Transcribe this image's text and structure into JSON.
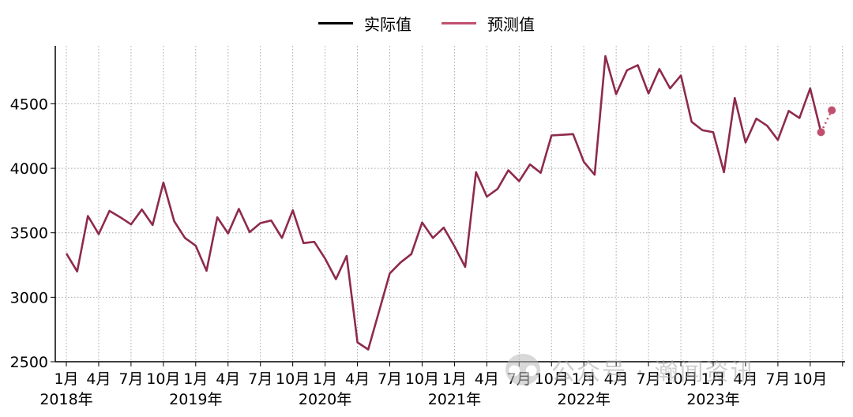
{
  "legend": {
    "actual_label": "实际值",
    "forecast_label": "预测值",
    "actual_color": "#000000",
    "forecast_color": "#c0506e"
  },
  "watermark": {
    "text": "公众号 · 瀚闻资讯",
    "icon": "wechat-icon"
  },
  "chart_data": {
    "type": "line",
    "title": "",
    "xlabel": "",
    "ylabel": "",
    "ylim": [
      2500,
      4950
    ],
    "grid": true,
    "legend_position": "top-center",
    "yticks": [
      2500,
      3000,
      3500,
      4000,
      4500
    ],
    "x_tick_labels": [
      {
        "month_index": 0,
        "label": "1月",
        "year_label": "2018年"
      },
      {
        "month_index": 3,
        "label": "4月"
      },
      {
        "month_index": 6,
        "label": "7月"
      },
      {
        "month_index": 9,
        "label": "10月"
      },
      {
        "month_index": 12,
        "label": "1月",
        "year_label": "2019年"
      },
      {
        "month_index": 15,
        "label": "4月"
      },
      {
        "month_index": 18,
        "label": "7月"
      },
      {
        "month_index": 21,
        "label": "10月"
      },
      {
        "month_index": 24,
        "label": "1月",
        "year_label": "2020年"
      },
      {
        "month_index": 27,
        "label": "4月"
      },
      {
        "month_index": 30,
        "label": "7月"
      },
      {
        "month_index": 33,
        "label": "10月"
      },
      {
        "month_index": 36,
        "label": "1月",
        "year_label": "2021年"
      },
      {
        "month_index": 39,
        "label": "4月"
      },
      {
        "month_index": 42,
        "label": "7月"
      },
      {
        "month_index": 45,
        "label": "10月"
      },
      {
        "month_index": 48,
        "label": "1月",
        "year_label": "2022年"
      },
      {
        "month_index": 51,
        "label": "4月"
      },
      {
        "month_index": 54,
        "label": "7月"
      },
      {
        "month_index": 57,
        "label": "10月"
      },
      {
        "month_index": 60,
        "label": "1月",
        "year_label": "2023年"
      },
      {
        "month_index": 63,
        "label": "4月"
      },
      {
        "month_index": 66,
        "label": "7月"
      },
      {
        "month_index": 69,
        "label": "10月"
      }
    ],
    "series": [
      {
        "name": "实际值",
        "color": "#8e2a4c",
        "values": [
          3340,
          3200,
          3630,
          3490,
          3670,
          3620,
          3565,
          3680,
          3560,
          3890,
          3590,
          3460,
          3400,
          3205,
          3620,
          3495,
          3685,
          3505,
          3575,
          3595,
          3460,
          3675,
          3420,
          3430,
          3300,
          3140,
          3320,
          2650,
          2595,
          2890,
          3185,
          3270,
          3335,
          3580,
          3460,
          3540,
          3395,
          3235,
          3970,
          3780,
          3840,
          3985,
          3900,
          4030,
          3965,
          4255,
          4260,
          4265,
          4050,
          3950,
          4870,
          4575,
          4760,
          4800,
          4580,
          4770,
          4620,
          4720,
          4360,
          4295,
          4280,
          3970,
          4545,
          4200,
          4385,
          4330,
          4220,
          4445,
          4390,
          4620,
          4280
        ]
      },
      {
        "name": "预测值",
        "color": "#c0506e",
        "points": [
          [
            70,
            4280
          ],
          [
            71,
            4450
          ]
        ]
      }
    ]
  }
}
